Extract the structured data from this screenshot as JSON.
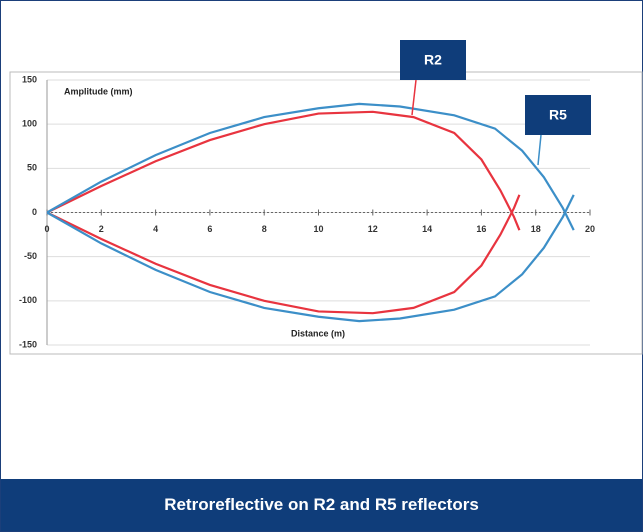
{
  "chart_data": {
    "type": "line",
    "caption": "Retroreflective on R2 and R5 reflectors",
    "y_label": "Amplitude (mm)",
    "x_label": "Distance (m)",
    "xlim": [
      0,
      20
    ],
    "ylim": [
      -150,
      150
    ],
    "xticks": [
      0,
      2,
      4,
      6,
      8,
      10,
      12,
      14,
      16,
      18,
      20
    ],
    "yticks": [
      150,
      100,
      50,
      0,
      -50,
      -100,
      -150
    ],
    "grid": true,
    "series": [
      {
        "name": "R2",
        "color": "#e8343f",
        "x": [
          0,
          2,
          4,
          6,
          8,
          10,
          12,
          13.5,
          15,
          16,
          16.7,
          17.2,
          17.4,
          null,
          0,
          2,
          4,
          6,
          8,
          10,
          12,
          13.5,
          15,
          16,
          16.7,
          17.2,
          17.4
        ],
        "values": [
          0,
          30,
          58,
          82,
          100,
          112,
          114,
          108,
          90,
          60,
          25,
          -5,
          -20,
          null,
          0,
          -30,
          -58,
          -82,
          -100,
          -112,
          -114,
          -108,
          -90,
          -60,
          -25,
          5,
          20
        ]
      },
      {
        "name": "R5",
        "color": "#3c8fc8",
        "x": [
          0,
          2,
          4,
          6,
          8,
          10,
          11.5,
          13,
          15,
          16.5,
          17.5,
          18.3,
          19,
          19.4,
          null,
          0,
          2,
          4,
          6,
          8,
          10,
          11.5,
          13,
          15,
          16.5,
          17.5,
          18.3,
          19,
          19.4
        ],
        "values": [
          0,
          35,
          65,
          90,
          108,
          118,
          123,
          120,
          110,
          95,
          70,
          40,
          5,
          -20,
          null,
          0,
          -35,
          -65,
          -90,
          -108,
          -118,
          -123,
          -120,
          -110,
          -95,
          -70,
          -40,
          -5,
          20
        ]
      }
    ]
  }
}
